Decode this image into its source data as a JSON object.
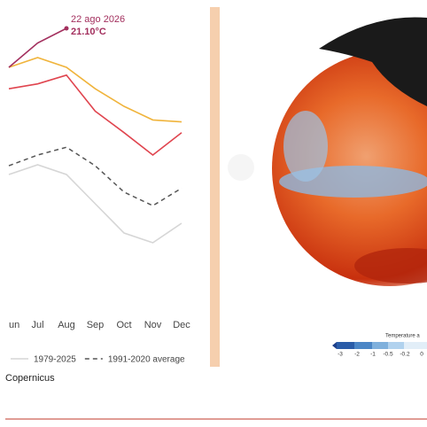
{
  "chart_data": {
    "type": "line",
    "categories": [
      "un",
      "Jul",
      "Aug",
      "Sep",
      "Oct",
      "Nov",
      "Dec"
    ],
    "ylim": [
      18.3,
      21.3
    ],
    "series": [
      {
        "name": "1979-2025",
        "color": "#d6d6d6",
        "dash": false,
        "values": [
          19.6,
          19.7,
          19.6,
          19.3,
          19.0,
          18.9,
          19.1
        ]
      },
      {
        "name": "1991-2020 average",
        "color": "#555555",
        "dash": true,
        "values": [
          19.69,
          19.8,
          19.88,
          19.69,
          19.42,
          19.28,
          19.46
        ]
      },
      {
        "color": "#f0b43c",
        "dash": false,
        "values": [
          20.7,
          20.8,
          20.7,
          20.48,
          20.3,
          20.16,
          20.14
        ]
      },
      {
        "color": "#e0454f",
        "dash": false,
        "values": [
          20.48,
          20.53,
          20.62,
          20.25,
          20.03,
          19.8,
          20.03
        ]
      },
      {
        "color": "#a3305e",
        "dash": false,
        "values": [
          20.7,
          20.95,
          21.1,
          null,
          null,
          null,
          null
        ]
      }
    ],
    "annotation": {
      "date": "22 ago 2026",
      "value_label": "21.10°C",
      "value": 21.1,
      "x_index": 2,
      "color": "#a3305e"
    }
  },
  "map_legend": {
    "title": "Temperature a",
    "ticks": [
      "-3",
      "-2",
      "-1",
      "-0.5",
      "-0.2",
      "0"
    ]
  },
  "caption": "Copernicus"
}
